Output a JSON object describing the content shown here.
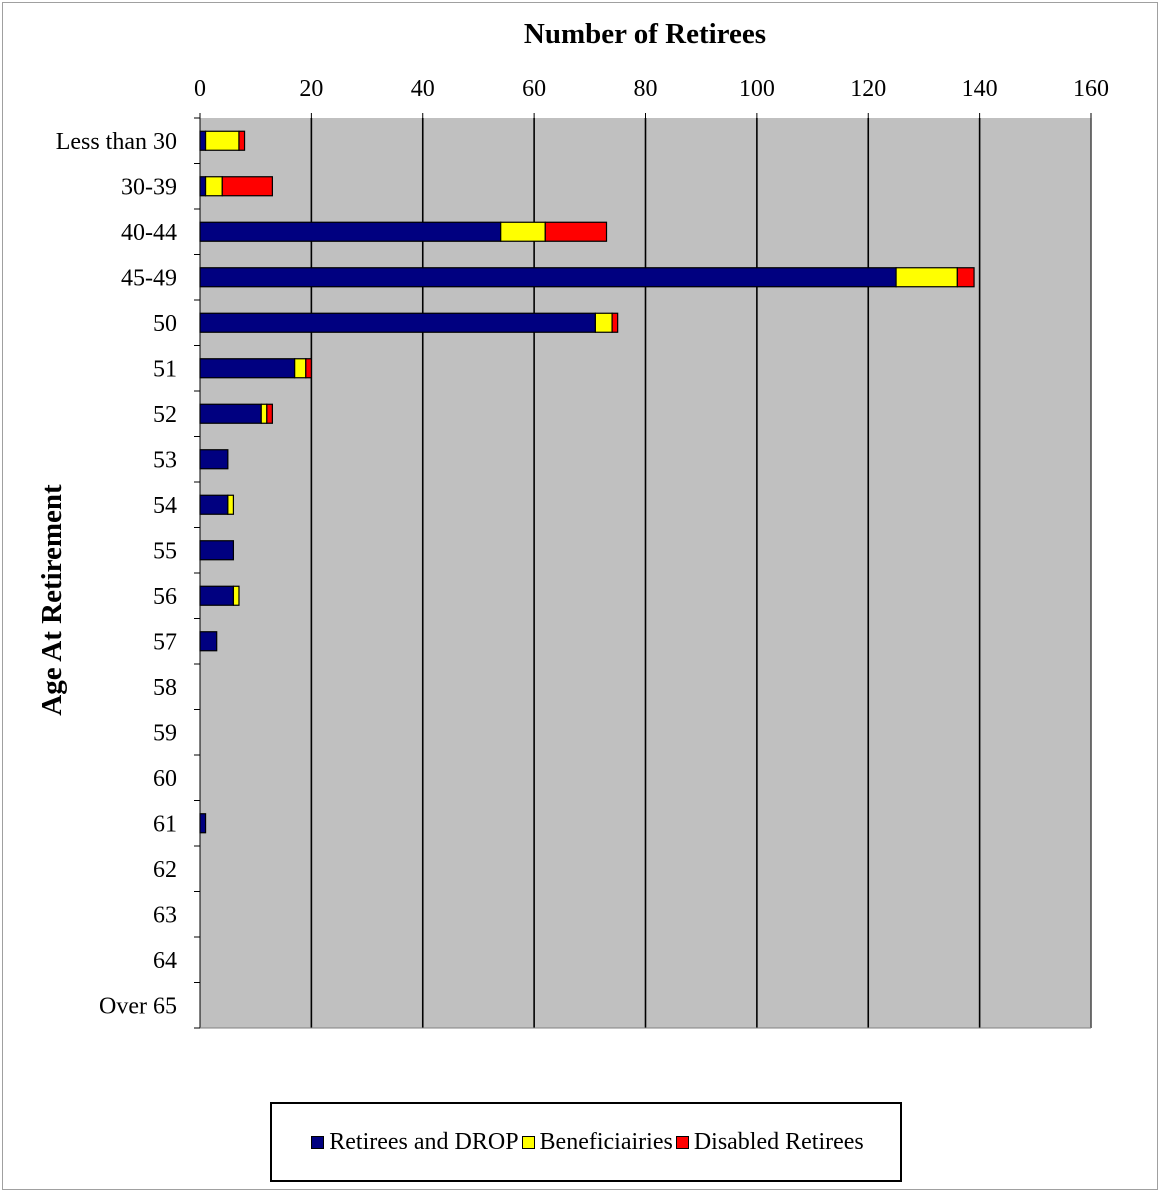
{
  "chart_data": {
    "type": "bar",
    "orientation": "horizontal",
    "stacked": true,
    "title": "Number  of Retirees",
    "xlabel": "",
    "ylabel": "Age  At Retirement",
    "xlim": [
      0,
      160
    ],
    "xticks": [
      "0",
      "20",
      "40",
      "60",
      "80",
      "100",
      "120",
      "140",
      "160"
    ],
    "grid": true,
    "legend_position": "bottom",
    "plot_background": "#c0c0c0",
    "categories": [
      "Less than 30",
      "30-39",
      "40-44",
      "45-49",
      "50",
      "51",
      "52",
      "53",
      "54",
      "55",
      "56",
      "57",
      "58",
      "59",
      "60",
      "61",
      "62",
      "63",
      "64",
      "Over 65"
    ],
    "series": [
      {
        "name": "Retirees and DROP",
        "color": "#000080",
        "values": [
          1,
          1,
          54,
          125,
          71,
          17,
          11,
          5,
          5,
          6,
          6,
          3,
          0,
          0,
          0,
          1,
          0,
          0,
          0,
          0
        ]
      },
      {
        "name": "Beneficiairies",
        "color": "#ffff00",
        "values": [
          6,
          3,
          8,
          11,
          3,
          2,
          1,
          0,
          1,
          0,
          1,
          0,
          0,
          0,
          0,
          0,
          0,
          0,
          0,
          0
        ]
      },
      {
        "name": "Disabled Retirees",
        "color": "#ff0000",
        "values": [
          1,
          9,
          11,
          3,
          1,
          1,
          1,
          0,
          0,
          0,
          0,
          0,
          0,
          0,
          0,
          0,
          0,
          0,
          0,
          0
        ]
      }
    ]
  }
}
